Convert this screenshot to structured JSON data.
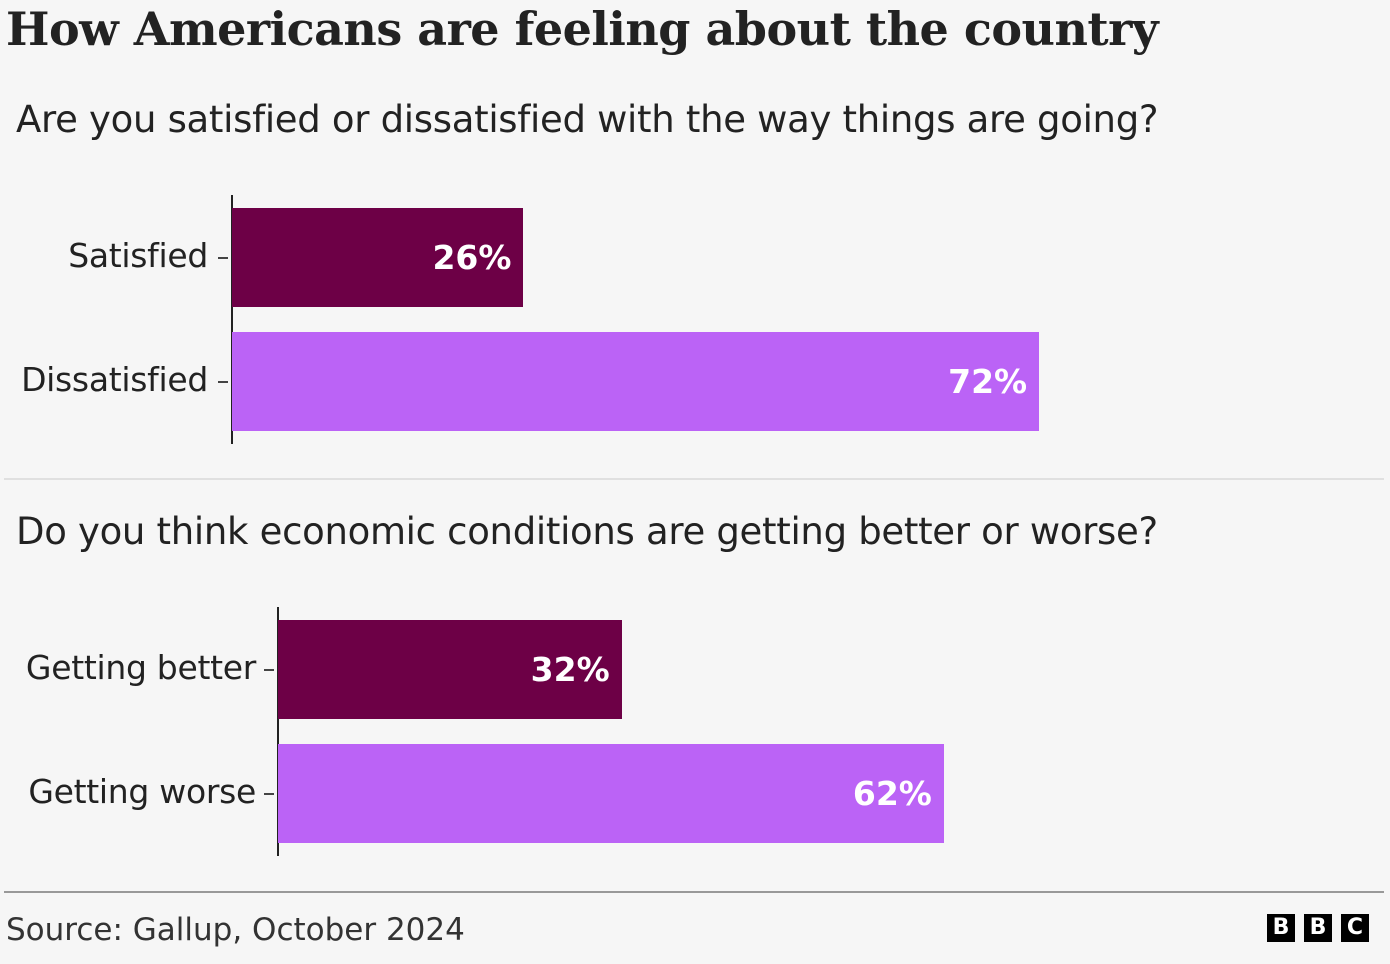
{
  "title": "How Americans are feeling about the country",
  "colors": {
    "primary": "#6d0046",
    "secondary": "#bb63f6",
    "background": "#f6f6f6"
  },
  "chart_data": [
    {
      "type": "bar",
      "orientation": "horizontal",
      "title": "Are you satisfied or dissatisfied with the way things are going?",
      "categories": [
        "Satisfied",
        "Dissatisfied"
      ],
      "values": [
        26,
        72
      ],
      "labels": [
        "26%",
        "72%"
      ],
      "unit": "%",
      "colors": [
        "#6d0046",
        "#bb63f6"
      ],
      "xlim": [
        0,
        100
      ],
      "grid": false
    },
    {
      "type": "bar",
      "orientation": "horizontal",
      "title": "Do you think economic conditions are getting better or worse?",
      "categories": [
        "Getting better",
        "Getting worse"
      ],
      "values": [
        32,
        62
      ],
      "labels": [
        "32%",
        "62%"
      ],
      "unit": "%",
      "colors": [
        "#6d0046",
        "#bb63f6"
      ],
      "xlim": [
        0,
        100
      ],
      "grid": false
    }
  ],
  "footer": {
    "source": "Source: Gallup, October 2024",
    "logo_letters": [
      "B",
      "B",
      "C"
    ]
  }
}
